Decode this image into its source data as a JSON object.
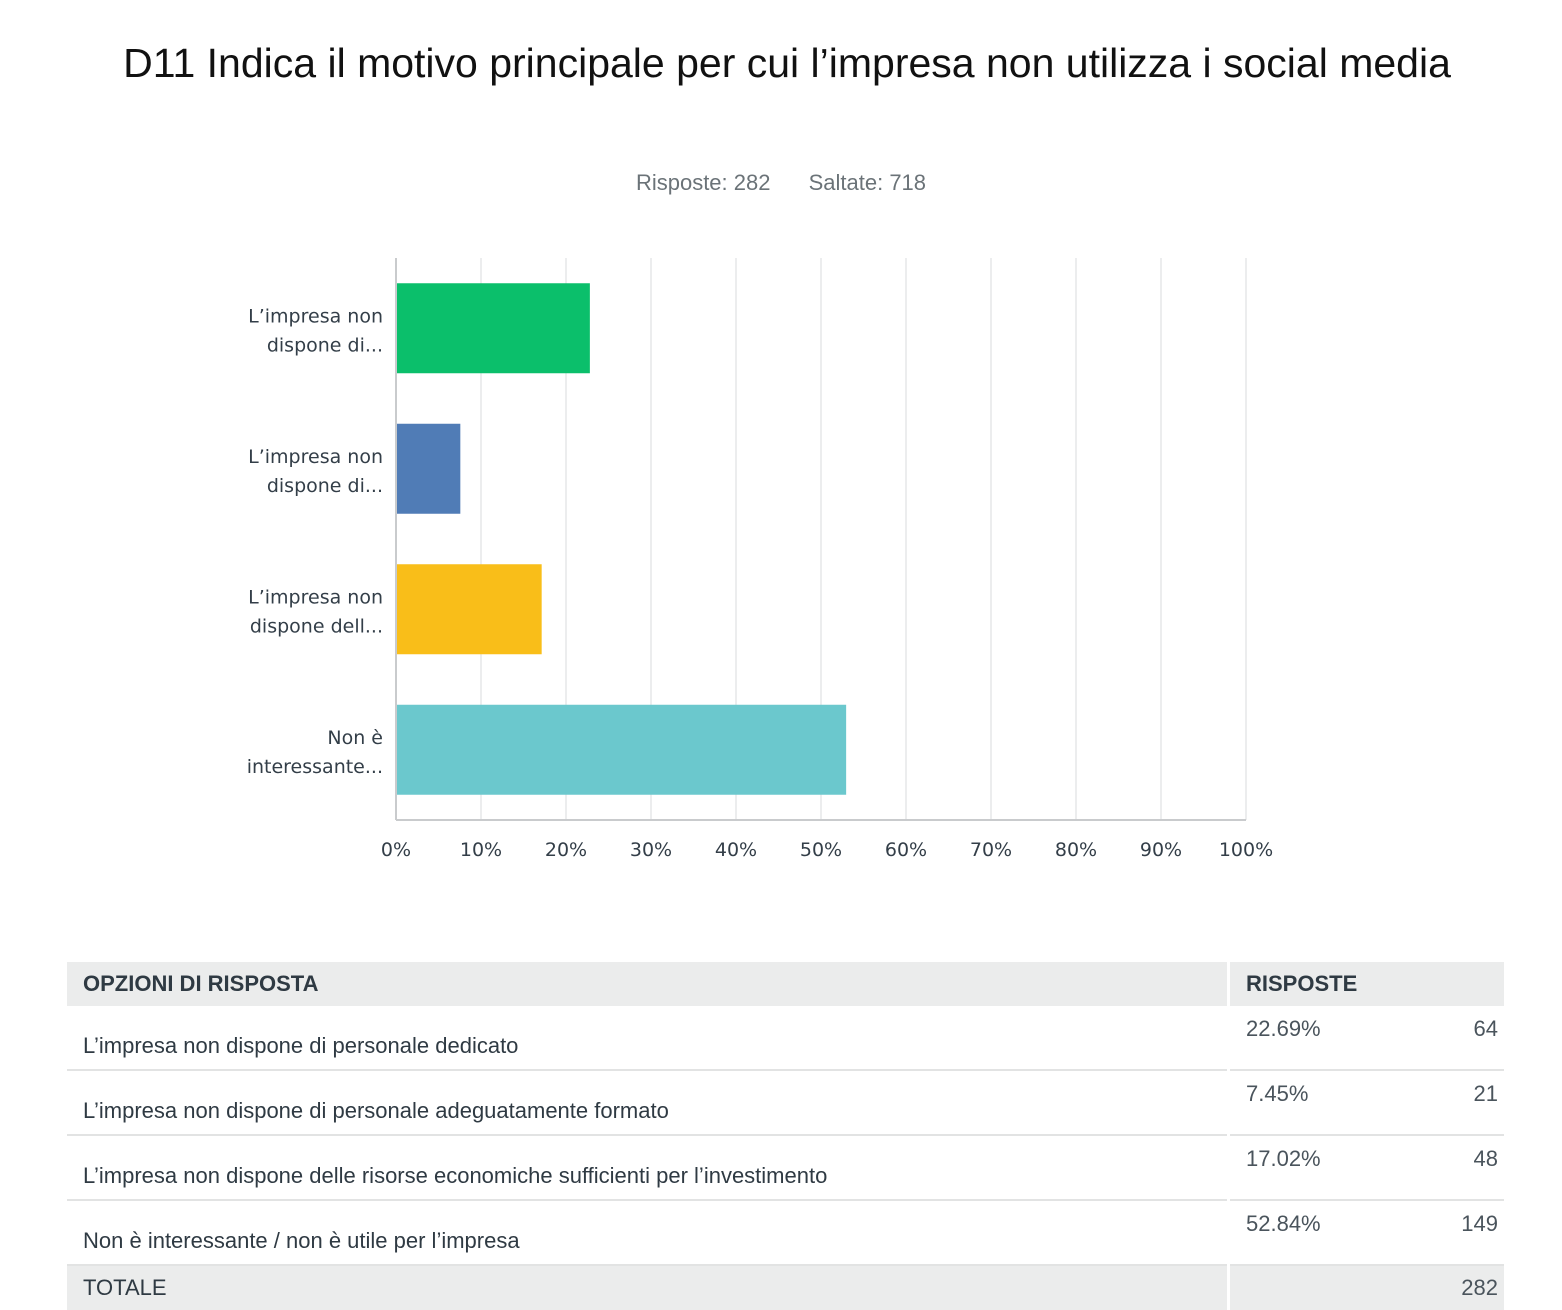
{
  "title": "D11 Indica il motivo principale per cui l’impresa non utilizza i social media",
  "stats": {
    "responses_label": "Risposte: 282",
    "skipped_label": "Saltate: 718"
  },
  "chart_data": {
    "type": "bar",
    "orientation": "horizontal",
    "categories": [
      [
        "L’impresa non",
        "dispone di..."
      ],
      [
        "L’impresa non",
        "dispone di..."
      ],
      [
        "L’impresa non",
        "dispone dell..."
      ],
      [
        "Non è",
        "interessante..."
      ]
    ],
    "values": [
      22.69,
      7.45,
      17.02,
      52.84
    ],
    "colors": [
      "#0bbf6b",
      "#507cb6",
      "#f9be19",
      "#6bc8cd"
    ],
    "xlim": [
      0,
      100
    ],
    "ticks": [
      "0%",
      "10%",
      "20%",
      "30%",
      "40%",
      "50%",
      "60%",
      "70%",
      "80%",
      "90%",
      "100%"
    ],
    "grid": true
  },
  "table": {
    "header_option": "OPZIONI DI RISPOSTA",
    "header_responses": "RISPOSTE",
    "rows": [
      {
        "option": "L’impresa non dispone di personale dedicato",
        "percent": "22.69%",
        "count": "64"
      },
      {
        "option": "L’impresa non dispone di personale adeguatamente formato",
        "percent": "7.45%",
        "count": "21"
      },
      {
        "option": "L’impresa non dispone delle risorse economiche sufficienti per l’investimento",
        "percent": "17.02%",
        "count": "48"
      },
      {
        "option": "Non è interessante / non è utile per l’impresa",
        "percent": "52.84%",
        "count": "149"
      }
    ],
    "total_label": "TOTALE",
    "total_count": "282"
  }
}
